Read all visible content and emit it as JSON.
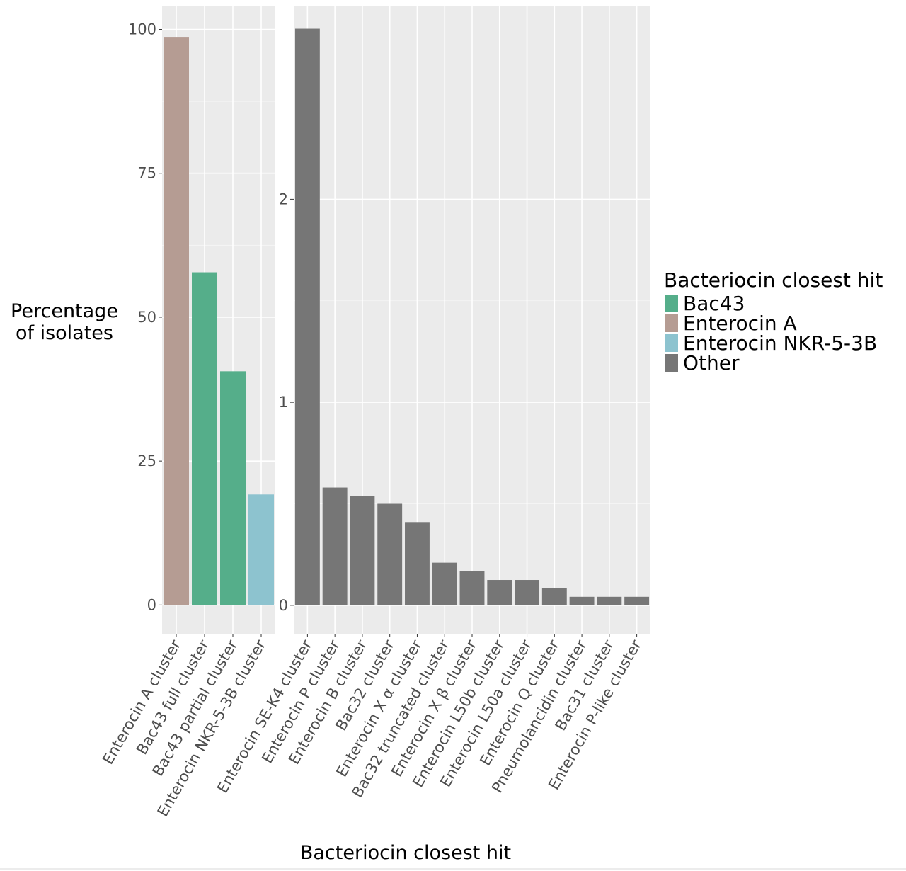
{
  "chart_data": {
    "type": "bar",
    "title": "",
    "xlabel": "Bacteriocin closest hit",
    "ylabel": [
      "Percentage",
      "of isolates"
    ],
    "grid": true,
    "legend": {
      "title": "Bacteriocin closest hit",
      "placement": "right",
      "entries": [
        {
          "label": "Bac43",
          "color": "#55ae8a"
        },
        {
          "label": "Enterocin A",
          "color": "#b59c93"
        },
        {
          "label": "Enterocin NKR-5-3B",
          "color": "#8dc3cf"
        },
        {
          "label": "Other",
          "color": "#767676"
        }
      ]
    },
    "panels": [
      {
        "ylim": [
          -5,
          104
        ],
        "yticks": [
          0,
          25,
          50,
          75,
          100
        ],
        "bars": [
          {
            "category": "Enterocin A cluster",
            "value": 98.7,
            "group": "Enterocin A"
          },
          {
            "category": "Bac43 full cluster",
            "value": 57.8,
            "group": "Bac43"
          },
          {
            "category": "Bac43 partial cluster",
            "value": 40.6,
            "group": "Bac43"
          },
          {
            "category": "Enterocin NKR-5-3B cluster",
            "value": 19.2,
            "group": "Enterocin NKR-5-3B"
          }
        ]
      },
      {
        "ylim": [
          -0.14,
          2.95
        ],
        "yticks": [
          0,
          1,
          2
        ],
        "bars": [
          {
            "category": "Enterocin SE-K4 cluster",
            "value": 2.84,
            "group": "Other"
          },
          {
            "category": "Enterocin P cluster",
            "value": 0.58,
            "group": "Other"
          },
          {
            "category": "Enterocin B cluster",
            "value": 0.54,
            "group": "Other"
          },
          {
            "category": "Bac32 cluster",
            "value": 0.5,
            "group": "Other"
          },
          {
            "category": "Enterocin X α cluster",
            "value": 0.41,
            "group": "Other"
          },
          {
            "category": "Bac32 truncated cluster",
            "value": 0.21,
            "group": "Other"
          },
          {
            "category": "Enterocin X β cluster",
            "value": 0.17,
            "group": "Other"
          },
          {
            "category": "Enterocin L50b cluster",
            "value": 0.125,
            "group": "Other"
          },
          {
            "category": "Enterocin L50a cluster",
            "value": 0.125,
            "group": "Other"
          },
          {
            "category": "Enterocin Q cluster",
            "value": 0.085,
            "group": "Other"
          },
          {
            "category": "Pneumolancidin cluster",
            "value": 0.042,
            "group": "Other"
          },
          {
            "category": "Bac31 cluster",
            "value": 0.042,
            "group": "Other"
          },
          {
            "category": "Enterocin P-like cluster",
            "value": 0.042,
            "group": "Other"
          }
        ]
      }
    ]
  }
}
